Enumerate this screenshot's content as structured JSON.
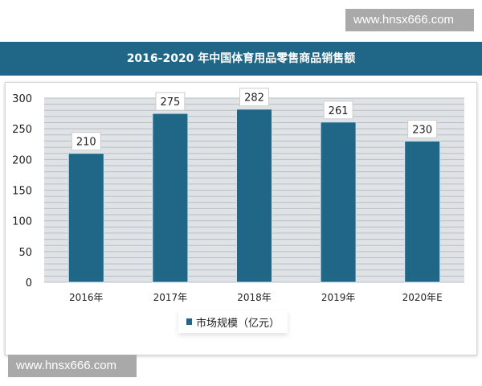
{
  "watermark": "www.hnsx666.com",
  "chart_data": {
    "type": "bar",
    "title": "2016-2020 年中国体育用品零售商品销售额",
    "categories": [
      "2016年",
      "2017年",
      "2018年",
      "2019年",
      "2020年E"
    ],
    "series": [
      {
        "name": "市场规模（亿元）",
        "values": [
          210,
          275,
          282,
          261,
          230
        ]
      }
    ],
    "yticks": [
      "0",
      "50",
      "100",
      "150",
      "200",
      "250",
      "300"
    ],
    "ylim": [
      0,
      300
    ],
    "grid": true,
    "legend": "bottom",
    "colors": {
      "bar": "#1f6687",
      "header": "#1f6687",
      "plot_bg": "#dfe3e6",
      "grid": "#b7bec4"
    }
  }
}
